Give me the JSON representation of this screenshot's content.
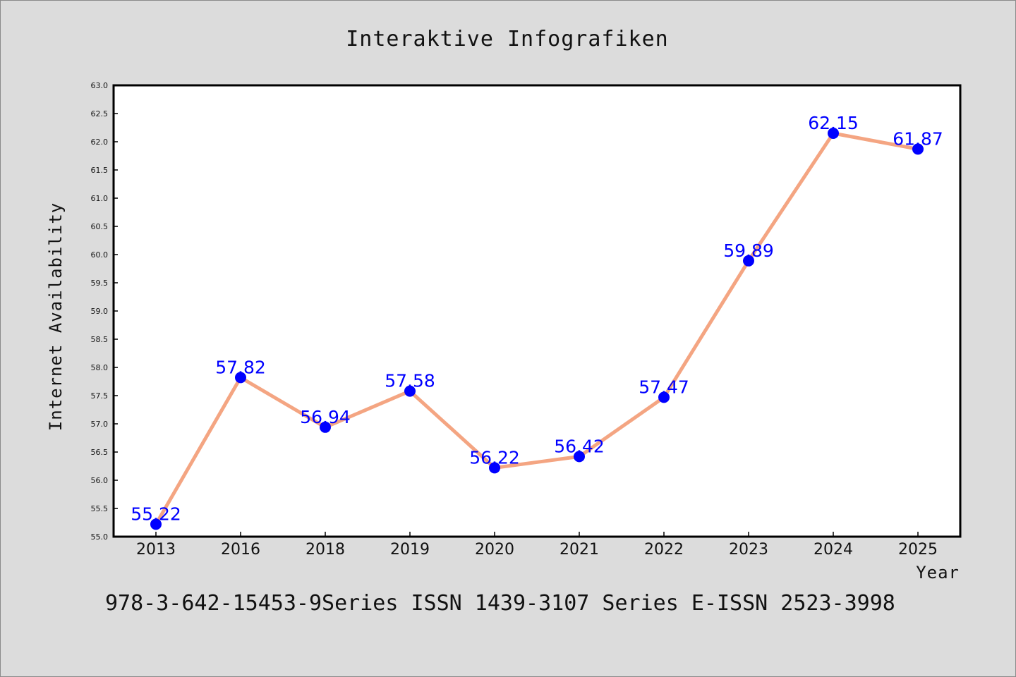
{
  "chart_data": {
    "type": "line",
    "title": "Interaktive Infografiken",
    "xlabel": "Year",
    "ylabel": "Internet Availability",
    "categories": [
      "2013",
      "2016",
      "2018",
      "2019",
      "2020",
      "2021",
      "2022",
      "2023",
      "2024",
      "2025"
    ],
    "series": [
      {
        "values": [
          55.22,
          57.82,
          56.94,
          57.58,
          56.22,
          56.42,
          57.47,
          59.89,
          62.15,
          61.87
        ],
        "data_labels": [
          "55.22",
          "57.82",
          "56.94",
          "57.58",
          "56.22",
          "56.42",
          "57.47",
          "59.89",
          "62.15",
          "61.87"
        ]
      }
    ],
    "ylim": [
      55.0,
      63.0
    ],
    "yticks": [
      "55.0",
      "55.5",
      "56.0",
      "56.5",
      "57.0",
      "57.5",
      "58.0",
      "58.5",
      "59.0",
      "59.5",
      "60.0",
      "60.5",
      "61.0",
      "61.5",
      "62.0",
      "62.5",
      "63.0"
    ],
    "grid": false,
    "legend": "none",
    "colors": {
      "line": "#f4a582",
      "marker": "#0000ff",
      "data_label": "#0000ff",
      "background": "#dcdcdc",
      "plot_area": "#ffffff"
    }
  },
  "footer": {
    "text": "978-3-642-15453-9Series ISSN 1439-3107 Series E-ISSN 2523-3998"
  }
}
